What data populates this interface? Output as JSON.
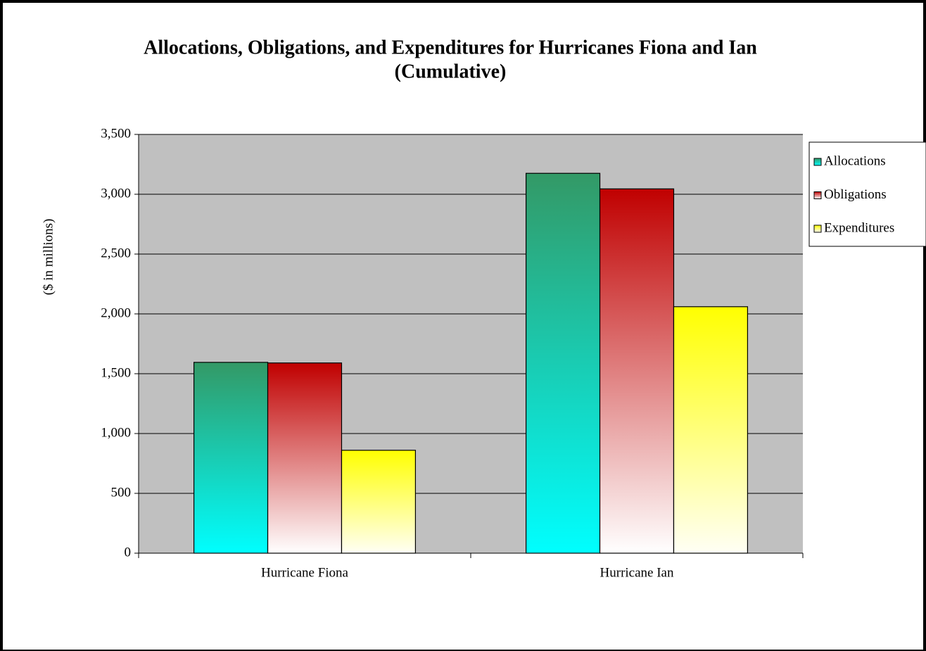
{
  "chart_data": {
    "type": "bar",
    "title": [
      "Allocations, Obligations, and Expenditures for Hurricanes Fiona and Ian",
      "(Cumulative)"
    ],
    "y_label": "($ in millions)",
    "categories": [
      "Hurricane Fiona",
      "Hurricane Ian"
    ],
    "series": [
      {
        "name": "Allocations",
        "color": "#339966",
        "values": [
          1595,
          3175
        ]
      },
      {
        "name": "Obligations",
        "color": "#c00000",
        "values": [
          1590,
          3045
        ]
      },
      {
        "name": "Expenditures",
        "color": "#ffff00",
        "values": [
          860,
          2060
        ]
      }
    ],
    "ylim": [
      0,
      3500
    ],
    "yticks": [
      0,
      500,
      {
        "value": 1000,
        "label": "1,000"
      },
      {
        "value": 1500,
        "label": "1,500"
      },
      {
        "value": 2000,
        "label": "2,000"
      },
      {
        "value": 2500,
        "label": "2,500"
      },
      {
        "value": 3000,
        "label": "3,000"
      },
      {
        "value": 3500,
        "label": "3,500"
      }
    ],
    "grid": true,
    "legend": "right"
  }
}
